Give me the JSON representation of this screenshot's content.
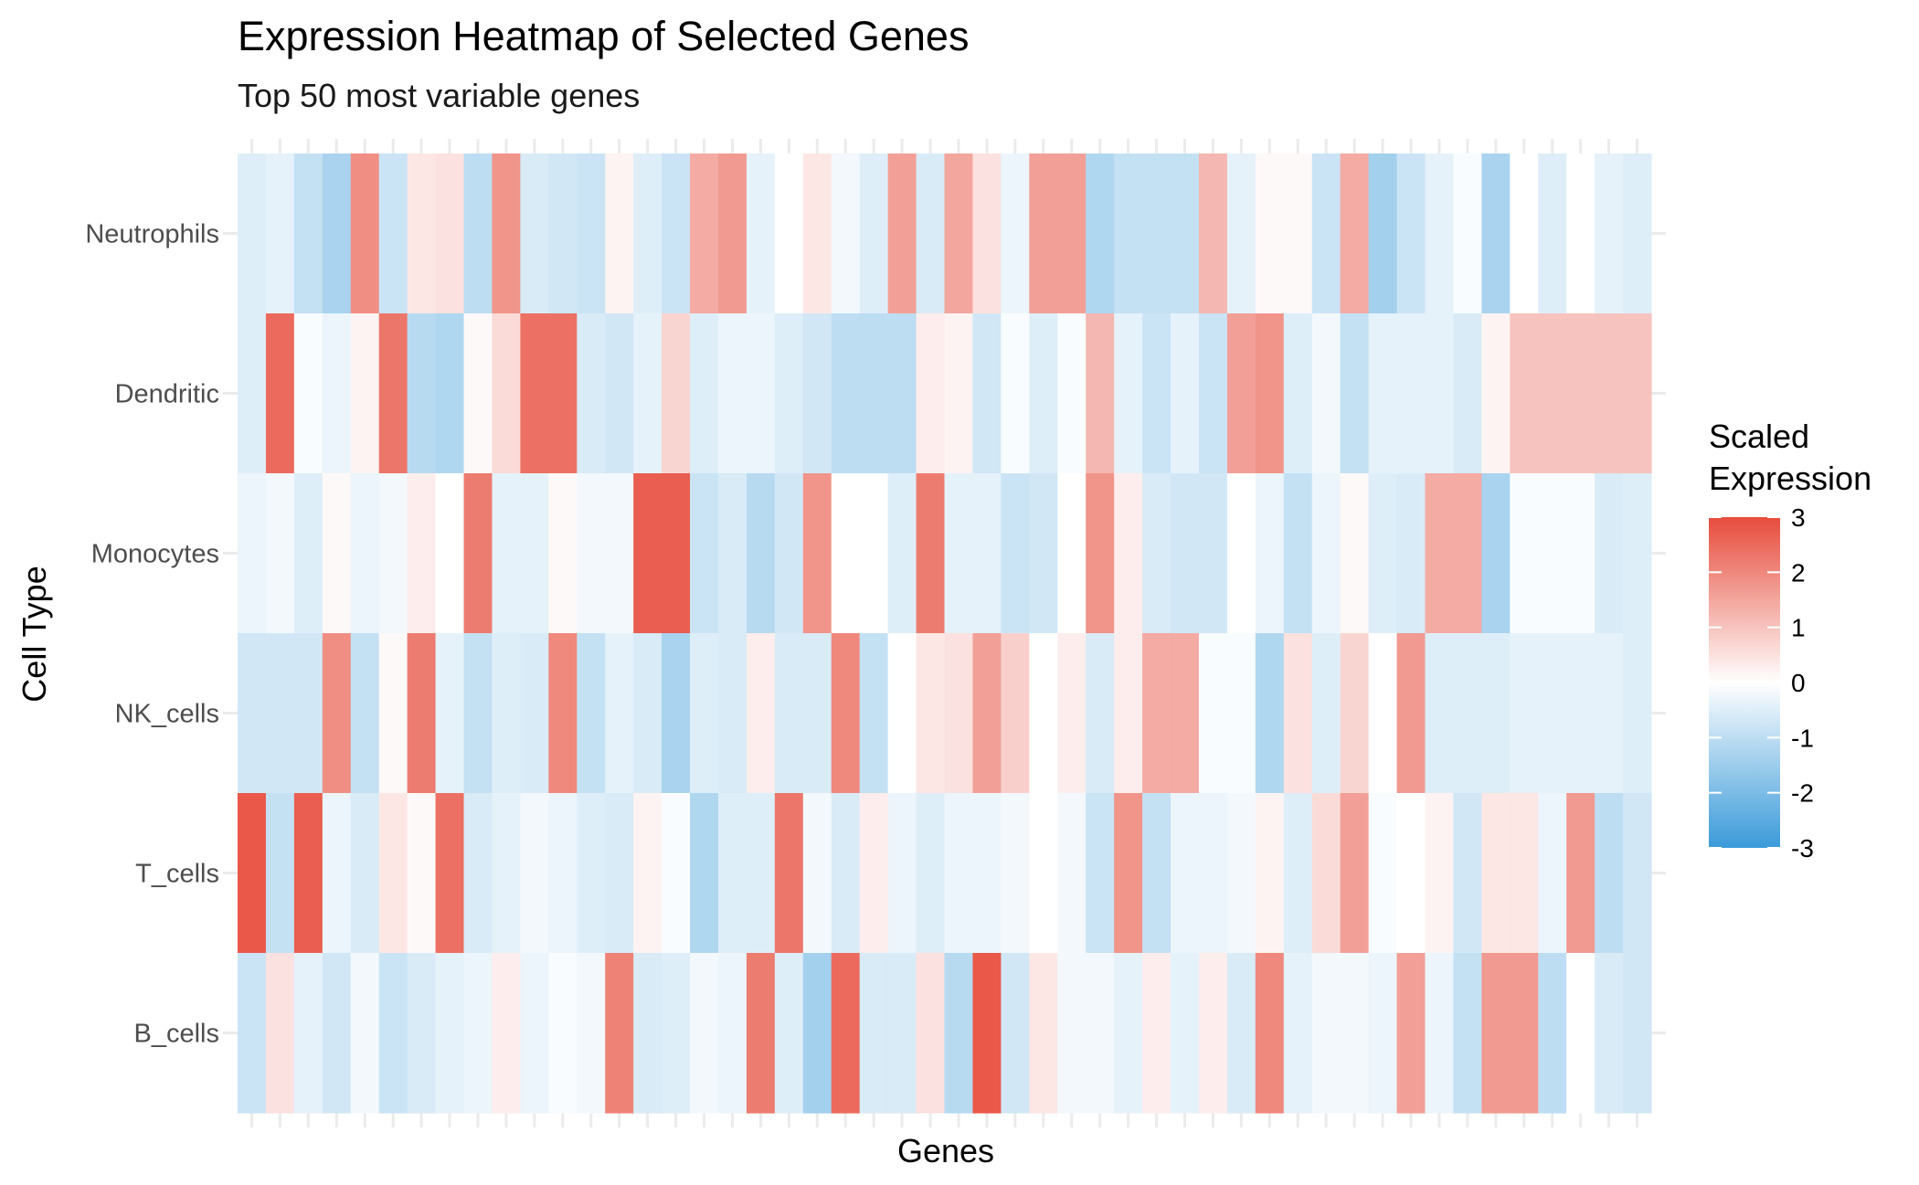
{
  "chart_data": {
    "type": "heatmap",
    "title": "Expression Heatmap of Selected Genes",
    "subtitle": "Top 50 most variable genes",
    "xlabel": "Genes",
    "ylabel": "Cell Type",
    "x_tick_labels_shown": false,
    "categories_y": [
      "Neutrophils",
      "Dendritic",
      "Monocytes",
      "NK_cells",
      "T_cells",
      "B_cells"
    ],
    "n_genes": 50,
    "colorscale": {
      "low": "#3a9ad9",
      "mid": "#ffffff",
      "high": "#e74c3c",
      "range": [
        -3,
        3
      ]
    },
    "legend": {
      "title_lines": [
        "Scaled",
        "Expression"
      ],
      "ticks": [
        3,
        2,
        1,
        0,
        -1,
        -2,
        -3
      ],
      "position": "right"
    },
    "values": [
      [
        -0.5,
        -0.4,
        -0.9,
        -1.3,
        1.9,
        -0.8,
        0.4,
        0.5,
        -1.0,
        1.8,
        -0.6,
        -0.7,
        -0.8,
        0.2,
        -0.5,
        -0.8,
        1.4,
        1.7,
        -0.4,
        0.0,
        0.4,
        -0.2,
        -0.5,
        1.6,
        -0.6,
        1.5,
        0.5,
        -0.3,
        1.6,
        1.6,
        -1.2,
        -0.9,
        -0.9,
        -0.9,
        1.2,
        -0.4,
        0.1,
        0.1,
        -0.8,
        1.4,
        -1.4,
        -0.8,
        -0.4,
        -0.1,
        -1.3,
        0.0,
        -0.5,
        0.0,
        -0.4,
        -0.5
      ],
      [
        -0.5,
        2.5,
        -0.1,
        -0.3,
        0.2,
        2.3,
        -1.1,
        -1.2,
        0.1,
        0.6,
        2.4,
        2.4,
        -0.6,
        -0.7,
        -0.4,
        0.7,
        -0.5,
        -0.3,
        -0.3,
        -0.5,
        -0.7,
        -1.0,
        -1.0,
        -1.0,
        0.3,
        0.2,
        -0.7,
        -0.1,
        -0.5,
        -0.1,
        1.2,
        -0.4,
        -0.8,
        -0.4,
        -0.8,
        1.6,
        1.8,
        -0.5,
        -0.2,
        -0.9,
        -0.4,
        -0.4,
        -0.4,
        -0.6,
        0.2,
        1.0,
        1.0,
        1.0,
        1.0,
        1.0
      ],
      [
        -0.3,
        -0.2,
        -0.5,
        0.1,
        -0.3,
        -0.2,
        0.3,
        0.0,
        2.2,
        -0.4,
        -0.4,
        0.1,
        -0.2,
        -0.2,
        2.7,
        2.7,
        -0.8,
        -0.6,
        -1.1,
        -0.7,
        1.8,
        0.0,
        0.0,
        -0.5,
        2.2,
        -0.4,
        -0.4,
        -0.8,
        -0.7,
        0.0,
        1.8,
        0.3,
        -0.6,
        -0.7,
        -0.7,
        0.0,
        -0.3,
        -0.9,
        -0.3,
        0.1,
        -0.5,
        -0.6,
        1.4,
        1.4,
        -1.3,
        -0.1,
        -0.1,
        -0.1,
        -0.6,
        -0.5
      ],
      [
        -0.7,
        -0.7,
        -0.7,
        1.9,
        -0.9,
        0.1,
        2.2,
        -0.4,
        -0.9,
        -0.5,
        -0.6,
        2.0,
        -0.9,
        -0.4,
        -0.6,
        -1.3,
        -0.5,
        -0.6,
        0.3,
        -0.6,
        -0.6,
        2.0,
        -0.9,
        0.0,
        0.4,
        0.5,
        1.6,
        0.8,
        0.0,
        0.3,
        -0.6,
        0.3,
        1.4,
        1.4,
        -0.1,
        -0.1,
        -1.2,
        0.5,
        -0.5,
        0.7,
        0.0,
        1.7,
        -0.5,
        -0.5,
        -0.5,
        -0.4,
        -0.4,
        -0.4,
        -0.4,
        -0.5
      ],
      [
        2.8,
        -0.9,
        2.7,
        -0.3,
        -0.6,
        0.4,
        0.1,
        2.4,
        -0.6,
        -0.4,
        -0.2,
        -0.3,
        -0.5,
        -0.6,
        0.2,
        -0.1,
        -1.2,
        -0.5,
        -0.5,
        2.3,
        -0.2,
        -0.6,
        0.3,
        -0.3,
        -0.5,
        -0.3,
        -0.3,
        -0.2,
        0.0,
        -0.2,
        -0.8,
        1.8,
        -0.9,
        -0.3,
        -0.3,
        -0.2,
        0.2,
        -0.5,
        0.6,
        1.6,
        -0.1,
        0.0,
        0.2,
        -0.7,
        0.4,
        0.4,
        -0.3,
        1.7,
        -1.0,
        -0.7
      ],
      [
        -0.8,
        0.5,
        -0.4,
        -0.7,
        -0.2,
        -0.8,
        -0.6,
        -0.4,
        -0.3,
        0.3,
        -0.3,
        -0.1,
        -0.2,
        2.1,
        -0.6,
        -0.5,
        -0.2,
        -0.3,
        2.2,
        -0.5,
        -1.4,
        2.5,
        -0.6,
        -0.6,
        0.5,
        -1.1,
        2.8,
        -0.7,
        0.4,
        -0.2,
        -0.2,
        -0.4,
        0.3,
        -0.4,
        0.3,
        -0.6,
        2.0,
        -0.4,
        -0.2,
        -0.2,
        -0.3,
        1.6,
        -0.3,
        -0.9,
        1.7,
        1.7,
        -1.0,
        0.0,
        -0.6,
        -0.7
      ]
    ]
  }
}
